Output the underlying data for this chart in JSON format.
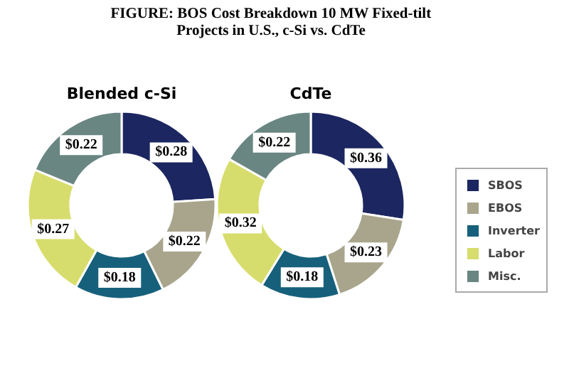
{
  "chart_data": [
    {
      "type": "donut",
      "title": "FIGURE: BOS Cost Breakdown 10 MW Fixed-tilt Projects in U.S., c-Si vs. CdTe",
      "subtitle": "Blended c-Si",
      "categories": [
        null,
        null,
        null,
        null,
        null
      ],
      "values": [
        0.28,
        0.22,
        0.18,
        0.27,
        0.22
      ],
      "value_labels": [
        "$0.28",
        "$0.22",
        "$0.18",
        "$0.27",
        "$0.22"
      ],
      "colors": [
        "#1c2660",
        "#a8a58c",
        "#17607c",
        "#d7dd6c",
        "#6a8683"
      ]
    },
    {
      "type": "donut",
      "subtitle": "CdTe",
      "categories": [
        "SBOS",
        "EBOS",
        "Inverter",
        "Labor",
        "Misc."
      ],
      "values": [
        0.36,
        0.23,
        0.18,
        0.32,
        0.22
      ],
      "value_labels": [
        "$0.36",
        "$0.23",
        "$0.18",
        "$0.32",
        "$0.22"
      ],
      "colors": [
        "#1c2660",
        "#a8a58c",
        "#17607c",
        "#d7dd6c",
        "#6a8683"
      ],
      "legend": "right"
    }
  ]
}
